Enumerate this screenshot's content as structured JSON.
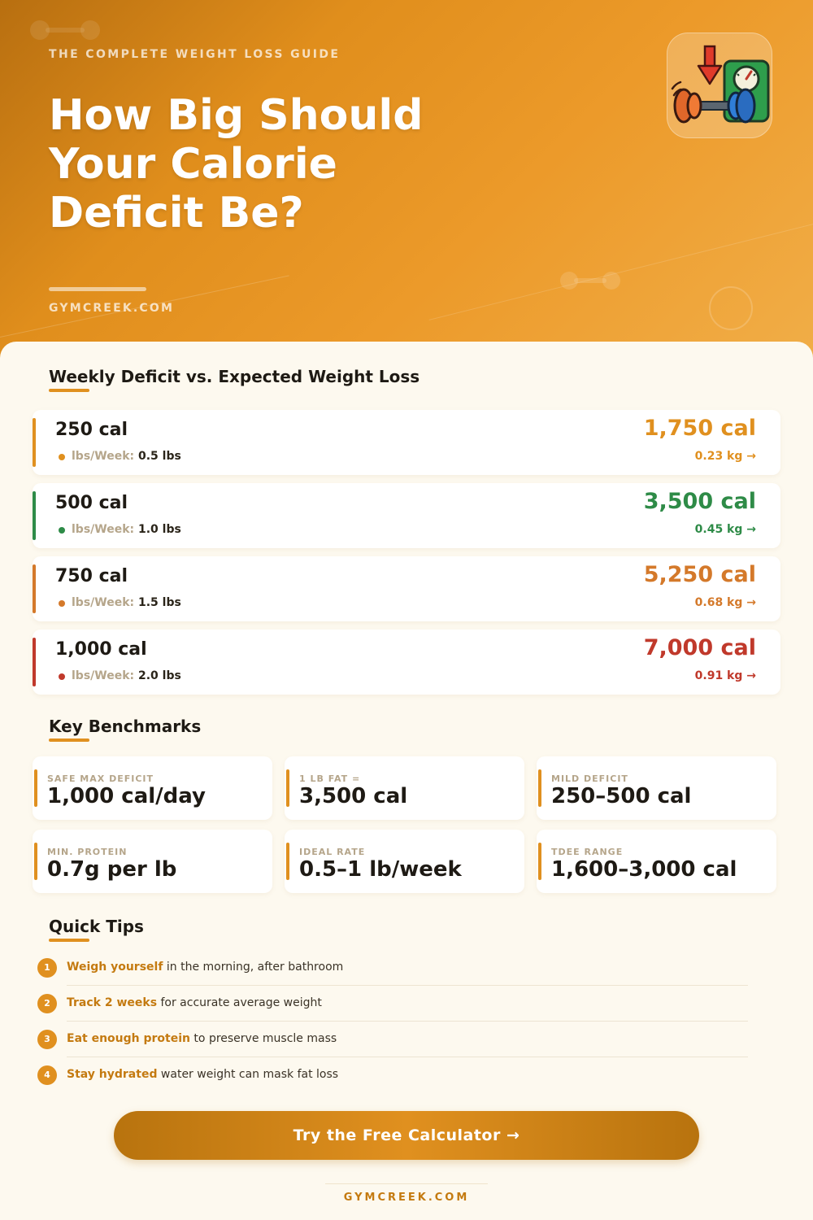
{
  "hero": {
    "kicker": "THE COMPLETE WEIGHT LOSS GUIDE",
    "title": "How Big Should Your Calorie Deficit Be?",
    "site": "GYMCREEK.COM",
    "logo_icon": "dumbbell-scale-icon"
  },
  "colors": {
    "brand": "#e0901f",
    "orange": "#e0901f",
    "green": "#2e8b47",
    "burnt": "#d4792a",
    "red": "#c0392b",
    "cream": "#fdf9ef"
  },
  "deficits": {
    "title": "Weekly Deficit vs. Expected Weight Loss",
    "meta_label": "lbs/Week:",
    "rows": [
      {
        "daily": "250 cal",
        "lbs": "0.5 lbs",
        "weekly": "1,750 cal",
        "kg": "0.23 kg →",
        "color": "#e0901f"
      },
      {
        "daily": "500 cal",
        "lbs": "1.0 lbs",
        "weekly": "3,500 cal",
        "kg": "0.45 kg →",
        "color": "#2e8b47"
      },
      {
        "daily": "750 cal",
        "lbs": "1.5 lbs",
        "weekly": "5,250 cal",
        "kg": "0.68 kg →",
        "color": "#d4792a"
      },
      {
        "daily": "1,000 cal",
        "lbs": "2.0 lbs",
        "weekly": "7,000 cal",
        "kg": "0.91 kg →",
        "color": "#c0392b"
      }
    ]
  },
  "benchmarks": {
    "title": "Key Benchmarks",
    "cards": [
      {
        "label": "SAFE MAX DEFICIT",
        "value": "1,000 cal/day"
      },
      {
        "label": "1 LB FAT =",
        "value": "3,500 cal"
      },
      {
        "label": "MILD DEFICIT",
        "value": "250–500 cal"
      },
      {
        "label": "MIN. PROTEIN",
        "value": "0.7g per lb"
      },
      {
        "label": "IDEAL RATE",
        "value": "0.5–1 lb/week"
      },
      {
        "label": "TDEE RANGE",
        "value": "1,600–3,000 cal"
      }
    ]
  },
  "tips": {
    "title": "Quick Tips",
    "items": [
      {
        "num": "1",
        "strong": "Weigh yourself",
        "text": " in the morning, after bathroom"
      },
      {
        "num": "2",
        "strong": "Track 2 weeks",
        "text": " for accurate average weight"
      },
      {
        "num": "3",
        "strong": "Eat enough protein",
        "text": " to preserve muscle mass"
      },
      {
        "num": "4",
        "strong": "Stay hydrated",
        "text": " water weight can mask fat loss"
      }
    ]
  },
  "cta": {
    "label": "Try the Free Calculator →"
  },
  "footer": {
    "site": "GYMCREEK.COM"
  }
}
